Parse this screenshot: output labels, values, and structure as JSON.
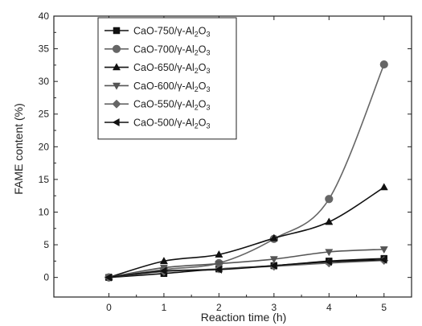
{
  "chart_data": {
    "type": "line",
    "xlabel": "Reaction time (h)",
    "ylabel": "FAME content (%)",
    "xlim": [
      -1,
      5.5
    ],
    "ylim": [
      -3,
      40
    ],
    "xticks": [
      0,
      1,
      2,
      3,
      4,
      5
    ],
    "yticks": [
      0,
      5,
      10,
      15,
      20,
      25,
      30,
      35,
      40
    ],
    "grid": false,
    "legend_position": "top-left",
    "x": [
      0,
      1,
      2,
      3,
      4,
      5
    ],
    "series": [
      {
        "name": "CaO-750/γ-Al2O3",
        "marker": "square",
        "color": "#111111",
        "values": [
          0,
          0.6,
          1.3,
          1.8,
          2.5,
          2.9
        ]
      },
      {
        "name": "CaO-700/γ-Al2O3",
        "marker": "circle",
        "color": "#666666",
        "values": [
          0,
          1.2,
          2.2,
          5.9,
          12.0,
          32.6
        ]
      },
      {
        "name": "CaO-650/γ-Al2O3",
        "marker": "triangle-up",
        "color": "#111111",
        "values": [
          0,
          2.5,
          3.5,
          6.0,
          8.5,
          13.8
        ]
      },
      {
        "name": "CaO-600/γ-Al2O3",
        "marker": "triangle-down",
        "color": "#555555",
        "values": [
          0,
          1.5,
          2.1,
          2.8,
          3.9,
          4.3
        ]
      },
      {
        "name": "CaO-550/γ-Al2O3",
        "marker": "diamond",
        "color": "#666666",
        "values": [
          0,
          0.9,
          1.3,
          1.7,
          2.2,
          2.6
        ]
      },
      {
        "name": "CaO-500/γ-Al2O3",
        "marker": "triangle-left",
        "color": "#111111",
        "values": [
          0,
          1.0,
          1.2,
          1.8,
          2.4,
          2.7
        ]
      }
    ]
  }
}
